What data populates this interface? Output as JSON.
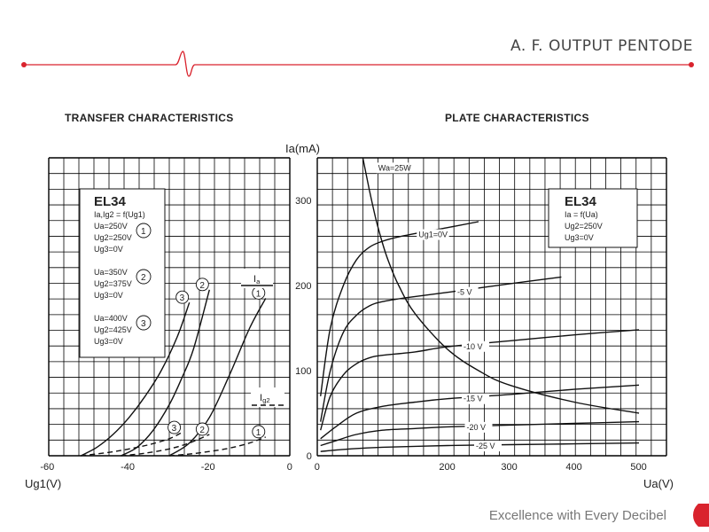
{
  "header": {
    "title": "A. F. OUTPUT PENTODE",
    "accent_color": "#d9232d"
  },
  "footer": {
    "tagline": "Excellence with Every Decibel"
  },
  "chart_data": [
    {
      "type": "line",
      "title": "TRANSFER CHARACTERISTICS",
      "xlabel": "Ug1(V)",
      "ylabel": "Ia(mA)",
      "xlim": [
        -60,
        0
      ],
      "ylim": [
        0,
        350
      ],
      "x_ticks": [
        "-60",
        "-40",
        "-20",
        "0"
      ],
      "grid": true,
      "legend": {
        "tube": "EL34",
        "function": "Ia,Ig2 = f(Ug1)",
        "groups": [
          {
            "id": "1",
            "lines": [
              "Ua=250V",
              "Ug2=250V",
              "Ug3=0V"
            ]
          },
          {
            "id": "2",
            "lines": [
              "Ua=350V",
              "Ug2=375V",
              "Ug3=0V"
            ]
          },
          {
            "id": "3",
            "lines": [
              "Ua=400V",
              "Ug2=425V",
              "Ug3=0V"
            ]
          }
        ]
      },
      "annotations": {
        "ia_label": "Ia",
        "ig2_label": "Ig2"
      },
      "series": [
        {
          "name": "1",
          "kind": "Ia",
          "x": [
            -30,
            -25,
            -20,
            -15,
            -10,
            -6
          ],
          "y": [
            0,
            15,
            45,
            95,
            150,
            185
          ]
        },
        {
          "name": "2",
          "kind": "Ia",
          "x": [
            -42,
            -38,
            -34,
            -30,
            -27,
            -24,
            -20
          ],
          "y": [
            0,
            10,
            30,
            60,
            90,
            125,
            195
          ]
        },
        {
          "name": "3",
          "kind": "Ia",
          "x": [
            -52,
            -48,
            -44,
            -40,
            -36,
            -32,
            -28,
            -25
          ],
          "y": [
            0,
            10,
            25,
            45,
            70,
            100,
            140,
            180
          ]
        },
        {
          "name": "1",
          "kind": "Ig2",
          "x": [
            -30,
            -25,
            -20,
            -15,
            -10,
            -6
          ],
          "y": [
            0,
            2,
            5,
            9,
            15,
            22
          ]
        },
        {
          "name": "2",
          "kind": "Ig2",
          "x": [
            -42,
            -36,
            -30,
            -25,
            -20
          ],
          "y": [
            0,
            3,
            8,
            15,
            25
          ]
        },
        {
          "name": "3",
          "kind": "Ig2",
          "x": [
            -52,
            -45,
            -40,
            -35,
            -30,
            -27
          ],
          "y": [
            0,
            4,
            8,
            13,
            20,
            27
          ]
        }
      ]
    },
    {
      "type": "line",
      "title": "PLATE CHARACTERISTICS",
      "xlabel": "Ua(V)",
      "ylabel": "Ia(mA)",
      "xlim": [
        0,
        500
      ],
      "ylim": [
        0,
        350
      ],
      "x_ticks": [
        "0",
        "200",
        "300",
        "400",
        "500"
      ],
      "y_ticks": [
        "0",
        "100",
        "200",
        "300"
      ],
      "grid": true,
      "legend": {
        "tube": "EL34",
        "function": "Ia = f(Ua)",
        "lines": [
          "Ug2=250V",
          "Ug3=0V"
        ]
      },
      "series": [
        {
          "name": "Ug1=0V",
          "x": [
            5,
            20,
            40,
            60,
            80,
            100,
            130,
            200,
            250
          ],
          "y": [
            70,
            150,
            200,
            230,
            245,
            252,
            258,
            268,
            275
          ]
        },
        {
          "name": "-5 V",
          "x": [
            5,
            20,
            40,
            60,
            80,
            100,
            140,
            200,
            300,
            380
          ],
          "y": [
            40,
            100,
            145,
            165,
            176,
            181,
            186,
            192,
            202,
            210
          ]
        },
        {
          "name": "-10 V",
          "x": [
            5,
            20,
            40,
            60,
            80,
            100,
            150,
            200,
            300,
            400,
            500
          ],
          "y": [
            30,
            70,
            95,
            108,
            115,
            118,
            122,
            128,
            135,
            142,
            148
          ]
        },
        {
          "name": "-15 V",
          "x": [
            5,
            30,
            60,
            100,
            150,
            200,
            300,
            400,
            500
          ],
          "y": [
            20,
            35,
            50,
            58,
            63,
            67,
            72,
            78,
            83
          ]
        },
        {
          "name": "-20 V",
          "x": [
            5,
            30,
            60,
            100,
            150,
            200,
            300,
            400,
            500
          ],
          "y": [
            12,
            18,
            25,
            30,
            32,
            34,
            36,
            38,
            40
          ]
        },
        {
          "name": "-25 V",
          "x": [
            5,
            50,
            100,
            200,
            300,
            400,
            500
          ],
          "y": [
            5,
            8,
            10,
            12,
            13,
            14,
            15
          ]
        },
        {
          "name": "Wa=25W",
          "x": [
            70,
            80,
            90,
            100,
            110,
            125,
            150,
            200,
            250,
            300,
            400,
            500
          ],
          "y": [
            350,
            312,
            278,
            250,
            227,
            200,
            167,
            125,
            100,
            83,
            63,
            50
          ]
        }
      ]
    }
  ]
}
